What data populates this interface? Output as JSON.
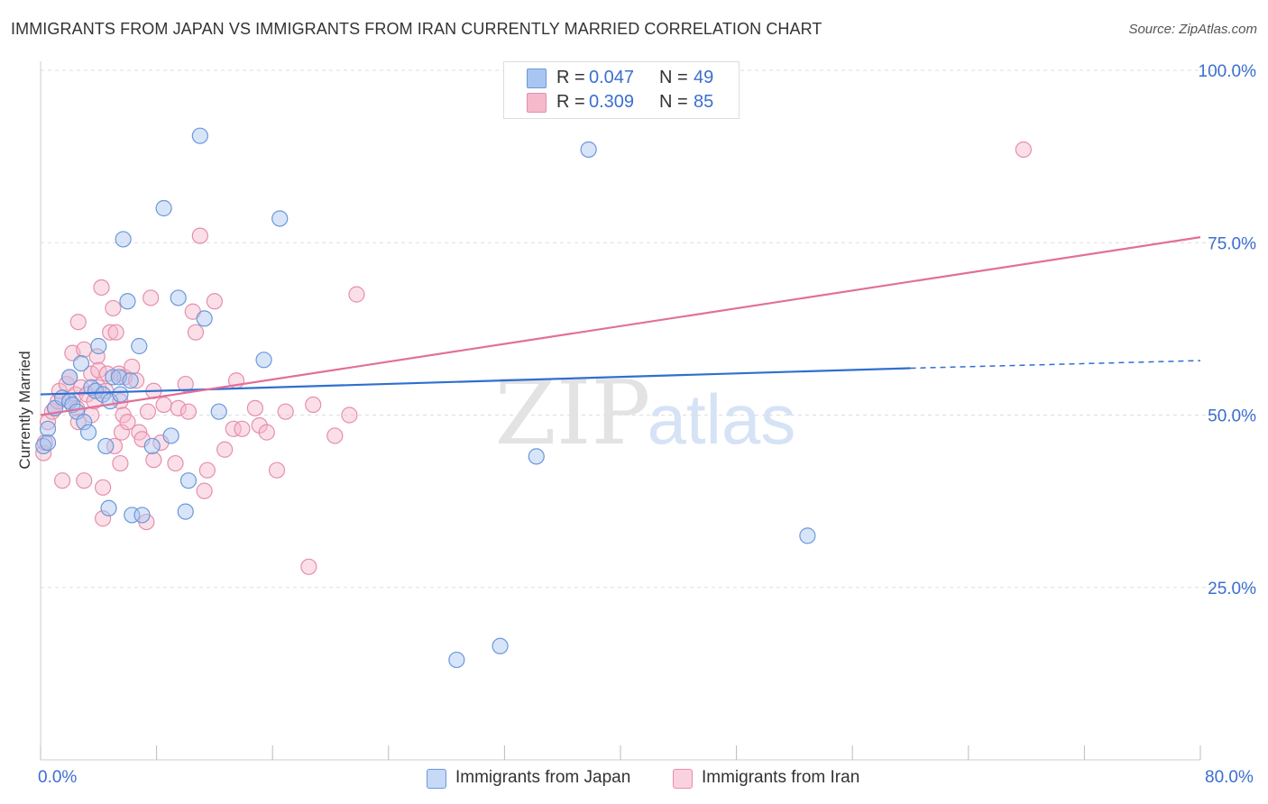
{
  "title": "IMMIGRANTS FROM JAPAN VS IMMIGRANTS FROM IRAN CURRENTLY MARRIED CORRELATION CHART",
  "source": "Source: ZipAtlas.com",
  "watermark": {
    "zip": "ZIP",
    "atlas": "atlas"
  },
  "legend_top": {
    "r_label": "R =",
    "n_label": "N =",
    "rows": [
      {
        "r": "0.047",
        "n": "49"
      },
      {
        "r": "0.309",
        "n": "85"
      }
    ]
  },
  "x_tick_labels": {
    "min": "0.0%",
    "max": "80.0%"
  },
  "colors": {
    "japan_fill": "#a9c6f2",
    "japan_stroke": "#6b98d8",
    "japan_line": "#2f6fd0",
    "iran_fill": "#f6b9cc",
    "iran_stroke": "#e58fab",
    "iran_line": "#e0709a",
    "axis_text": "#3b6fcf",
    "grid": "#dddddd"
  },
  "chart_data": {
    "type": "scatter",
    "title": "IMMIGRANTS FROM JAPAN VS IMMIGRANTS FROM IRAN CURRENTLY MARRIED CORRELATION CHART",
    "xlabel": "",
    "ylabel": "Currently Married",
    "xlim": [
      0,
      80
    ],
    "ylim": [
      0,
      105
    ],
    "y_ticks": [
      25,
      50,
      75,
      100
    ],
    "y_tick_labels": [
      "25.0%",
      "50.0%",
      "75.0%",
      "100.0%"
    ],
    "grid": true,
    "legend": "bottom-center",
    "series": [
      {
        "name": "Immigrants from Japan",
        "r": 0.047,
        "n": 49,
        "trend": {
          "x": [
            0,
            60
          ],
          "y": [
            53.0,
            56.8
          ],
          "dashed_to": [
            80,
            57.9
          ]
        },
        "points": [
          [
            0.2,
            45.5
          ],
          [
            0.5,
            48
          ],
          [
            0.5,
            46
          ],
          [
            1.0,
            51
          ],
          [
            1.5,
            52.5
          ],
          [
            2.0,
            52
          ],
          [
            2.0,
            55.5
          ],
          [
            2.2,
            51.5
          ],
          [
            2.5,
            50.5
          ],
          [
            2.8,
            57.5
          ],
          [
            3.0,
            49
          ],
          [
            3.3,
            47.5
          ],
          [
            3.5,
            54
          ],
          [
            3.8,
            53.5
          ],
          [
            4.0,
            60
          ],
          [
            4.3,
            53
          ],
          [
            4.5,
            45.5
          ],
          [
            4.7,
            36.5
          ],
          [
            4.8,
            52
          ],
          [
            5.0,
            55.5
          ],
          [
            5.4,
            55.5
          ],
          [
            5.5,
            53
          ],
          [
            5.7,
            75.5
          ],
          [
            6.0,
            66.5
          ],
          [
            6.2,
            55
          ],
          [
            6.3,
            35.5
          ],
          [
            6.8,
            60
          ],
          [
            7.0,
            35.5
          ],
          [
            7.7,
            45.5
          ],
          [
            8.5,
            80
          ],
          [
            9.0,
            47
          ],
          [
            9.5,
            67
          ],
          [
            10.0,
            36
          ],
          [
            10.2,
            40.5
          ],
          [
            11.0,
            90.5
          ],
          [
            11.3,
            64
          ],
          [
            12.3,
            50.5
          ],
          [
            15.4,
            58
          ],
          [
            16.5,
            78.5
          ],
          [
            28.7,
            14.5
          ],
          [
            31.7,
            16.5
          ],
          [
            34.2,
            44
          ],
          [
            37.8,
            88.5
          ],
          [
            52.9,
            32.5
          ]
        ]
      },
      {
        "name": "Immigrants from Iran",
        "r": 0.309,
        "n": 85,
        "trend": {
          "x": [
            0,
            80
          ],
          "y": [
            50.0,
            75.8
          ]
        },
        "points": [
          [
            0.2,
            44.5
          ],
          [
            0.3,
            46
          ],
          [
            0.5,
            49
          ],
          [
            0.8,
            50.5
          ],
          [
            1.0,
            51
          ],
          [
            1.2,
            52
          ],
          [
            1.3,
            53.5
          ],
          [
            1.5,
            40.5
          ],
          [
            1.8,
            54.5
          ],
          [
            2.0,
            52
          ],
          [
            2.0,
            55.5
          ],
          [
            2.2,
            59
          ],
          [
            2.4,
            53
          ],
          [
            2.5,
            51
          ],
          [
            2.6,
            49
          ],
          [
            2.6,
            63.5
          ],
          [
            2.8,
            54
          ],
          [
            3.0,
            40.5
          ],
          [
            3.0,
            59.5
          ],
          [
            3.2,
            53
          ],
          [
            3.5,
            50
          ],
          [
            3.5,
            56
          ],
          [
            3.7,
            52
          ],
          [
            3.9,
            58.5
          ],
          [
            4.0,
            54
          ],
          [
            4.0,
            56.5
          ],
          [
            4.2,
            68.5
          ],
          [
            4.3,
            35
          ],
          [
            4.3,
            39.5
          ],
          [
            4.5,
            53.5
          ],
          [
            4.6,
            56
          ],
          [
            4.8,
            62
          ],
          [
            5.0,
            65.5
          ],
          [
            5.1,
            45.5
          ],
          [
            5.2,
            62
          ],
          [
            5.4,
            56
          ],
          [
            5.5,
            52
          ],
          [
            5.5,
            43
          ],
          [
            5.6,
            47.5
          ],
          [
            5.7,
            50
          ],
          [
            5.8,
            55.5
          ],
          [
            6.0,
            49
          ],
          [
            6.3,
            57
          ],
          [
            6.6,
            55
          ],
          [
            6.8,
            47.5
          ],
          [
            7.0,
            46.5
          ],
          [
            7.3,
            34.5
          ],
          [
            7.4,
            50.5
          ],
          [
            7.6,
            67
          ],
          [
            7.8,
            53.5
          ],
          [
            7.8,
            43.5
          ],
          [
            8.3,
            46
          ],
          [
            8.5,
            51.5
          ],
          [
            9.3,
            43
          ],
          [
            9.5,
            51
          ],
          [
            10.0,
            54.5
          ],
          [
            10.2,
            50.5
          ],
          [
            10.5,
            65
          ],
          [
            10.7,
            62
          ],
          [
            11.0,
            76
          ],
          [
            11.3,
            39
          ],
          [
            11.5,
            42
          ],
          [
            12.0,
            66.5
          ],
          [
            12.7,
            45
          ],
          [
            13.3,
            48
          ],
          [
            13.5,
            55
          ],
          [
            13.9,
            48
          ],
          [
            14.8,
            51
          ],
          [
            15.1,
            48.5
          ],
          [
            15.6,
            47.5
          ],
          [
            16.3,
            42
          ],
          [
            16.9,
            50.5
          ],
          [
            18.5,
            28
          ],
          [
            18.8,
            51.5
          ],
          [
            20.3,
            47
          ],
          [
            21.3,
            50
          ],
          [
            21.8,
            67.5
          ],
          [
            67.8,
            88.5
          ]
        ]
      }
    ]
  }
}
